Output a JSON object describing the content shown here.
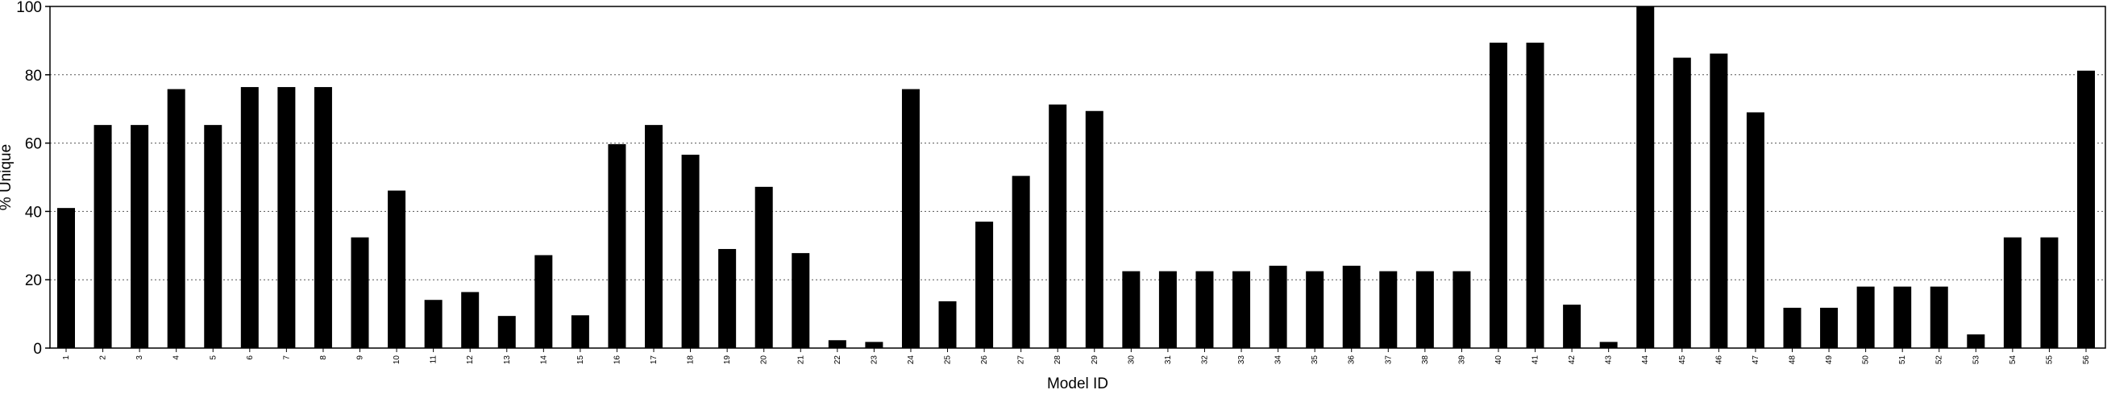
{
  "chart_data": {
    "type": "bar",
    "title": "",
    "xlabel": "Model ID",
    "ylabel": "% Unique",
    "ylim": [
      0,
      100
    ],
    "yticks": [
      0,
      20,
      40,
      60,
      80,
      100
    ],
    "grid": "horizontal dotted",
    "legend": "none",
    "bar_color": "#000000",
    "categories": [
      "1",
      "2",
      "3",
      "4",
      "5",
      "6",
      "7",
      "8",
      "9",
      "10",
      "11",
      "12",
      "13",
      "14",
      "15",
      "16",
      "17",
      "18",
      "19",
      "20",
      "21",
      "22",
      "23",
      "24",
      "25",
      "26",
      "27",
      "28",
      "29",
      "30",
      "31",
      "32",
      "33",
      "34",
      "35",
      "36",
      "37",
      "38",
      "39",
      "40",
      "41",
      "42",
      "43",
      "44",
      "45",
      "46",
      "47",
      "48",
      "49",
      "50",
      "51",
      "52",
      "53",
      "54",
      "55",
      "56"
    ],
    "values": [
      41,
      65.3,
      65.3,
      75.8,
      65.3,
      76.4,
      76.4,
      76.4,
      32.4,
      46.1,
      14.1,
      16.4,
      9.4,
      27.2,
      9.6,
      59.7,
      65.3,
      56.6,
      29,
      47.2,
      27.8,
      2.3,
      1.8,
      75.8,
      13.7,
      37,
      50.4,
      71.3,
      69.4,
      22.5,
      22.5,
      22.5,
      22.5,
      24.1,
      22.5,
      24.1,
      22.5,
      22.5,
      22.5,
      89.4,
      89.4,
      12.7,
      1.8,
      100,
      85,
      86.2,
      69,
      11.8,
      11.8,
      18,
      18,
      18,
      4,
      32.4,
      32.4,
      81.2
    ]
  }
}
